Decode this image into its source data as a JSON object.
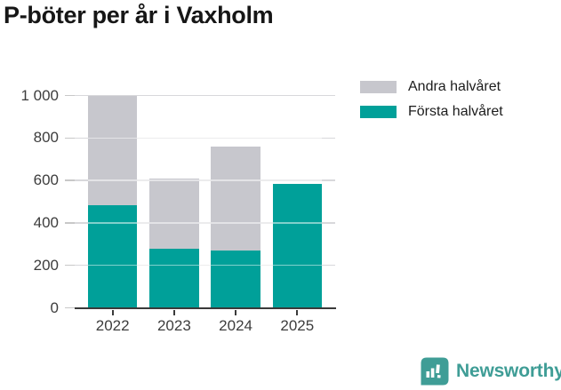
{
  "title": "P-böter per år i Vaxholm",
  "chart_data": {
    "type": "bar",
    "stacked": true,
    "title": "P-böter per år i Vaxholm",
    "categories": [
      "2022",
      "2023",
      "2024",
      "2025"
    ],
    "series": [
      {
        "name": "Första halvåret",
        "color": "#00a099",
        "values": [
          485,
          280,
          270,
          585
        ]
      },
      {
        "name": "Andra halvåret",
        "color": "#c7c7cd",
        "values": [
          515,
          330,
          490,
          0
        ]
      }
    ],
    "totals": [
      1000,
      610,
      760,
      585
    ],
    "xlabel": "",
    "ylabel": "",
    "ylim": [
      0,
      1000
    ],
    "ytick_values": [
      0,
      200,
      400,
      600,
      800,
      1000
    ],
    "ytick_labels": [
      "0",
      "200",
      "400",
      "600",
      "800",
      "1 000"
    ],
    "grid": true,
    "legend_position": "top-right",
    "legend_order_series_indexes": [
      1,
      0
    ]
  },
  "footer": {
    "brand": "Newsworthy",
    "brand_color": "#3f9d96",
    "logo_icon": "bar-chart-speech-bubble"
  },
  "colors": {
    "first_half": "#00a099",
    "second_half": "#c7c7cd",
    "axis": "#3a3a3a",
    "gridline": "#d8d8db",
    "tick_text": "#3d3d3d",
    "title_text": "#161616"
  }
}
